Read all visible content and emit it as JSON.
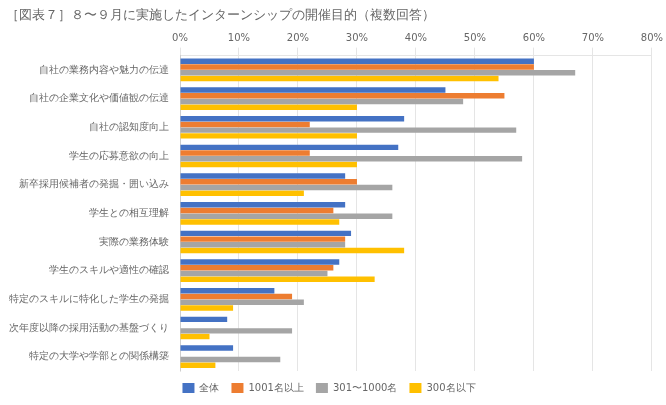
{
  "chart_data": {
    "type": "bar",
    "orientation": "horizontal",
    "title": "［図表７］８〜９月に実施したインターンシップの開催目的（複数回答）",
    "categories": [
      "自社の業務内容や魅力の伝達",
      "自社の企業文化や価値観の伝達",
      "自社の認知度向上",
      "学生の応募意欲の向上",
      "新卒採用候補者の発掘・囲い込み",
      "学生との相互理解",
      "実際の業務体験",
      "学生のスキルや適性の確認",
      "特定のスキルに特化した学生の発掘",
      "次年度以降の採用活動の基盤づくり",
      "特定の大学や学部との関係構築"
    ],
    "series": [
      {
        "name": "全体",
        "color": "#4472C4",
        "values": [
          60,
          45,
          38,
          37,
          28,
          28,
          29,
          27,
          16,
          8,
          9
        ]
      },
      {
        "name": "1001名以上",
        "color": "#ED7D31",
        "values": [
          60,
          55,
          22,
          22,
          30,
          26,
          28,
          26,
          19,
          0,
          0
        ]
      },
      {
        "name": "301〜1000名",
        "color": "#A5A5A5",
        "values": [
          67,
          48,
          57,
          58,
          36,
          36,
          28,
          25,
          21,
          19,
          17
        ]
      },
      {
        "name": "300名以下",
        "color": "#FFC000",
        "values": [
          54,
          30,
          30,
          30,
          21,
          27,
          38,
          33,
          9,
          5,
          6
        ]
      }
    ],
    "xlim": [
      0,
      80
    ],
    "xticks": [
      {
        "value": 0,
        "label": "0%"
      },
      {
        "value": 10,
        "label": "10%"
      },
      {
        "value": 20,
        "label": "20%"
      },
      {
        "value": 30,
        "label": "30%"
      },
      {
        "value": 40,
        "label": "40%"
      },
      {
        "value": 50,
        "label": "50%"
      },
      {
        "value": 60,
        "label": "60%"
      },
      {
        "value": 70,
        "label": "70%"
      },
      {
        "value": 80,
        "label": "80%"
      }
    ],
    "grid": true,
    "legend": "bottom"
  }
}
